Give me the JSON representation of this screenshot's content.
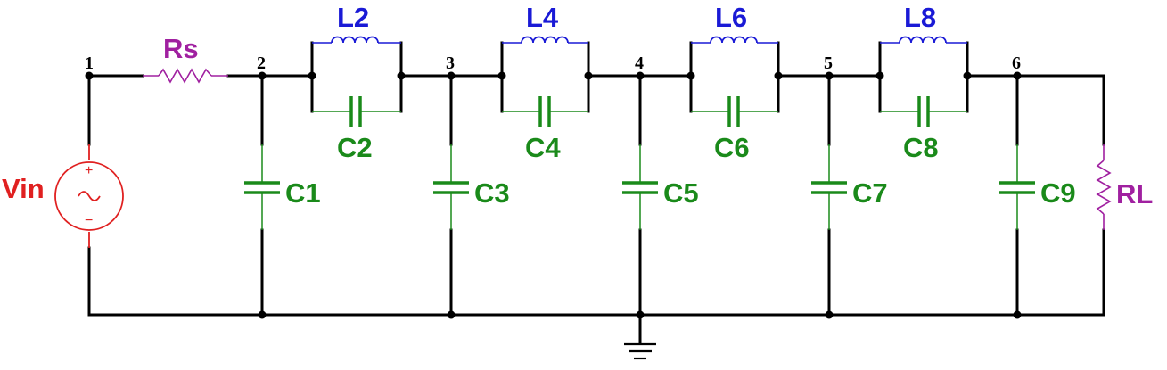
{
  "diagram": {
    "nodes": [
      "1",
      "2",
      "3",
      "4",
      "5",
      "6"
    ],
    "source": {
      "label": "Vin",
      "plus": "+",
      "minus": "−",
      "color": "#e02020"
    },
    "series_resistor": {
      "label": "Rs",
      "color": "#a020a0"
    },
    "load_resistor": {
      "label": "RL",
      "color": "#a020a0"
    },
    "resonators": [
      {
        "inductor": "L2",
        "capacitor": "C2"
      },
      {
        "inductor": "L4",
        "capacitor": "C4"
      },
      {
        "inductor": "L6",
        "capacitor": "C6"
      },
      {
        "inductor": "L8",
        "capacitor": "C8"
      }
    ],
    "shunt_capacitors": [
      "C1",
      "C3",
      "C5",
      "C7",
      "C9"
    ],
    "colors": {
      "inductor": "#1a1ad6",
      "capacitor": "#1a8a1a",
      "wire": "#000000"
    }
  }
}
